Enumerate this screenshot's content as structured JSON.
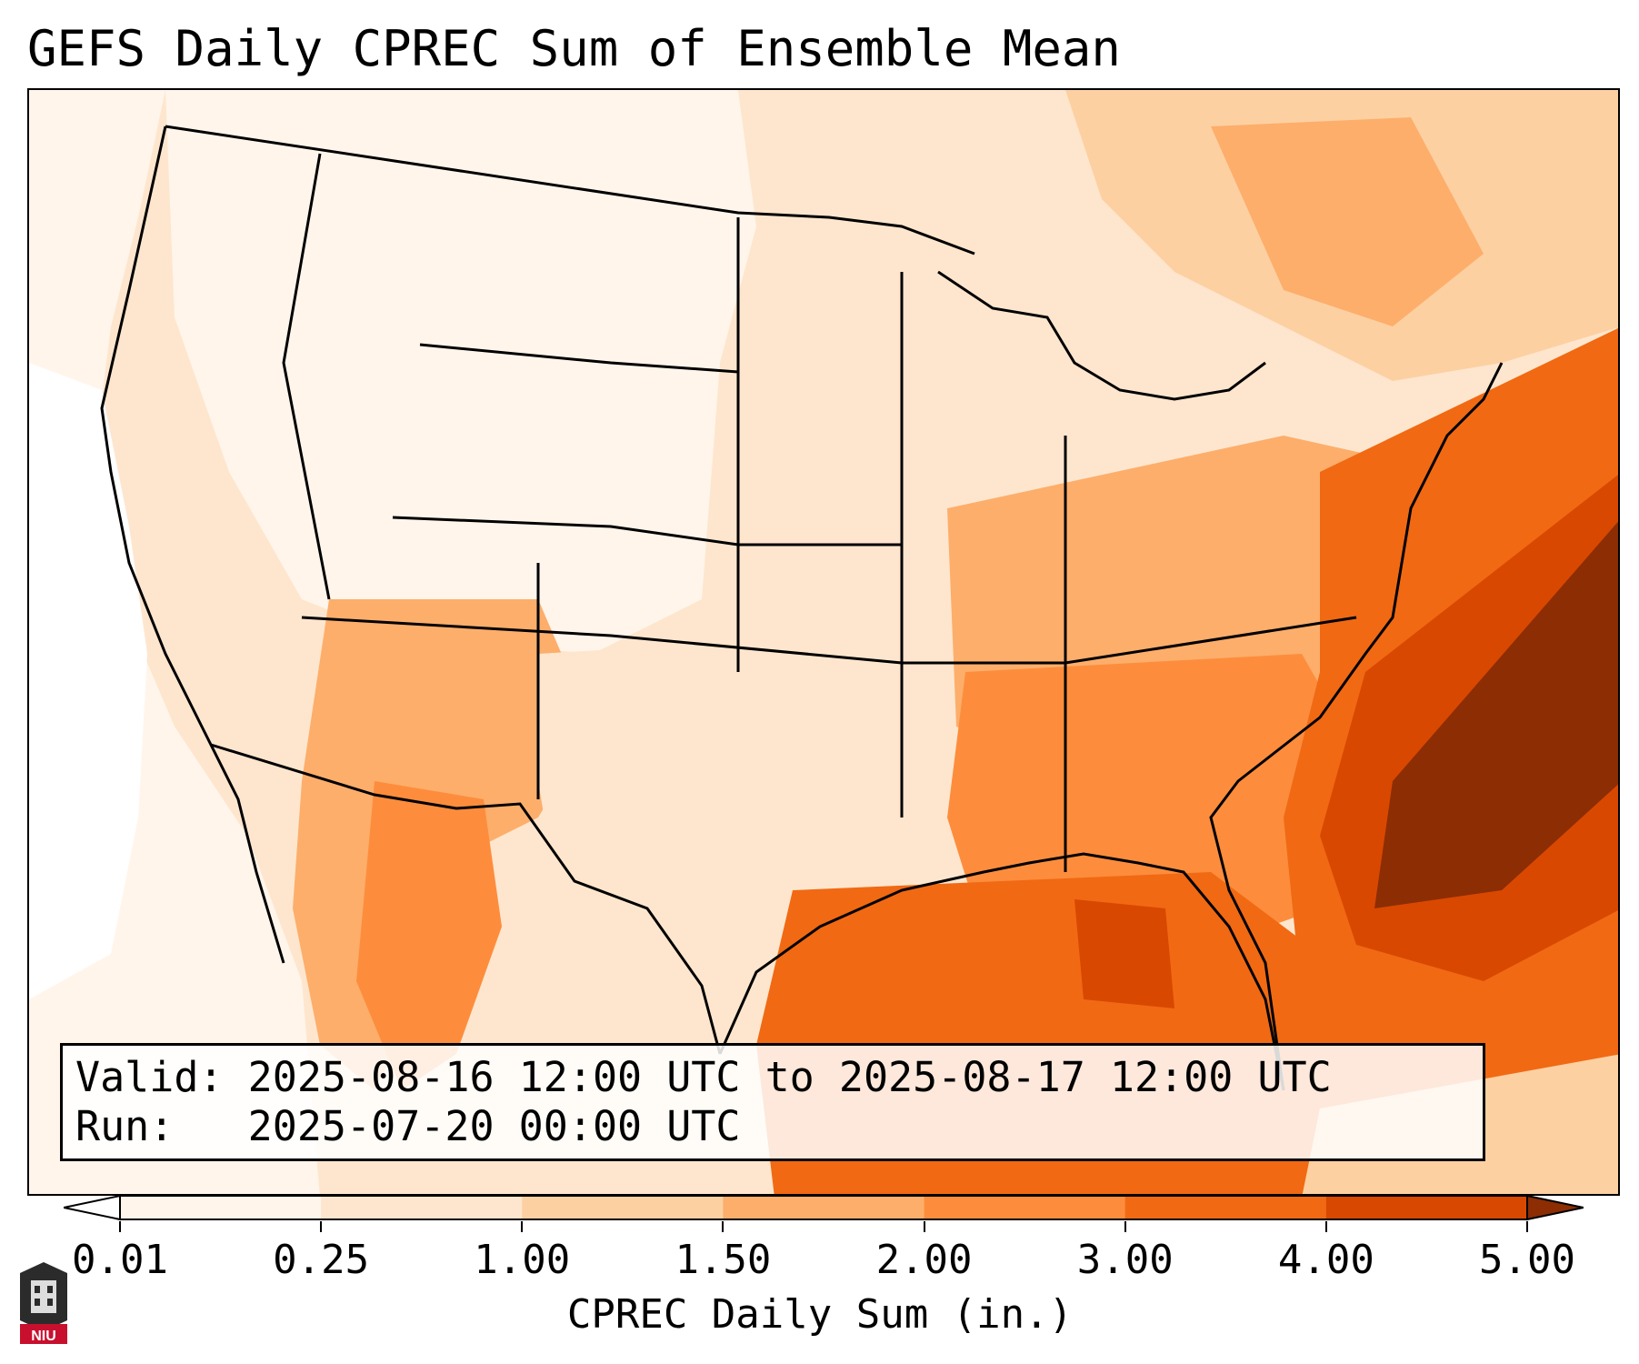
{
  "title": "GEFS Daily CPREC Sum of Ensemble Mean",
  "info": {
    "valid_line": "Valid: 2025-08-16 12:00 UTC to 2025-08-17 12:00 UTC",
    "run_line": "Run:   2025-07-20 00:00 UTC"
  },
  "colorbar": {
    "label": "CPREC Daily Sum (in.)",
    "ticks": [
      "0.01",
      "0.25",
      "1.00",
      "1.50",
      "2.00",
      "3.00",
      "4.00",
      "5.00"
    ],
    "colors": [
      "#fff5eb",
      "#fee6ce",
      "#fdd0a2",
      "#fdae6b",
      "#fd8d3c",
      "#f16913",
      "#d94801",
      "#8c2d04"
    ],
    "under_color": "#ffffff",
    "over_color": "#8c2d04",
    "extend": "both"
  },
  "logo": {
    "text": "NIU",
    "icon": "niu-university-logo"
  },
  "map": {
    "projection": "lambert-conformal",
    "region": "Contiguous United States",
    "field": "CPREC daily sum (in.)",
    "palette_name": "Oranges",
    "regions_description_colors": {
      "pacific_coast_ocean": "#ffffff",
      "interior_west": "#fff5eb",
      "plains": "#fee6ce",
      "southwest_monsoon": "#fdae6b",
      "southeast": "#fd8d3c",
      "gulf_of_mexico": "#f16913",
      "atlantic_max": "#8c2d04"
    }
  }
}
